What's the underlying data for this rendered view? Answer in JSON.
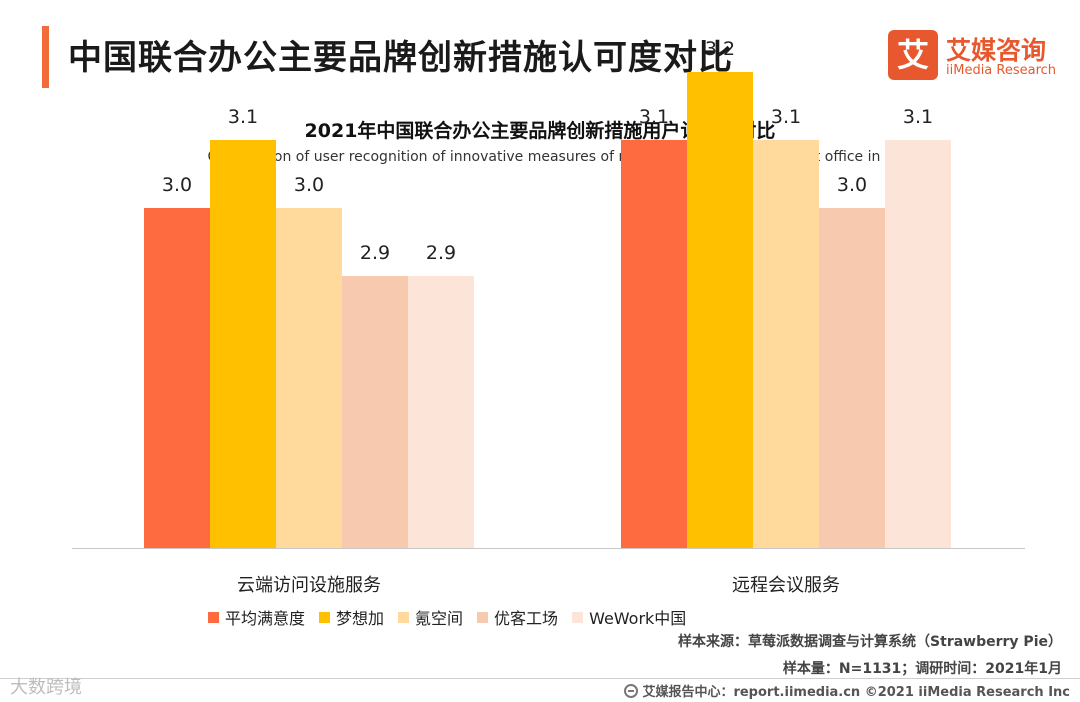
{
  "header": {
    "title": "中国联合办公主要品牌创新措施认可度对比",
    "accent_color": "#F26B3A"
  },
  "logo": {
    "glyph": "艾",
    "cn": "艾媒咨询",
    "en": "iiMedia Research",
    "color": "#E8582E"
  },
  "chart_data": {
    "type": "bar",
    "title": "2021年中国联合办公主要品牌创新措施用户认可度对比",
    "subtitle": "Comparison of user recognition of innovative measures of major brands of China's joint office in 2021",
    "categories": [
      "云端访问设施服务",
      "远程会议服务"
    ],
    "ylim": [
      2.5,
      3.3
    ],
    "series": [
      {
        "name": "平均满意度",
        "color": "#FF6B40",
        "values": [
          3.0,
          3.1
        ]
      },
      {
        "name": "梦想加",
        "color": "#FFC000",
        "values": [
          3.1,
          3.2
        ]
      },
      {
        "name": "氪空间",
        "color": "#FFDA9C",
        "values": [
          3.0,
          3.1
        ]
      },
      {
        "name": "优客工场",
        "color": "#F7C9AF",
        "values": [
          2.9,
          3.0
        ]
      },
      {
        "name": "WeWork中国",
        "color": "#FCE4D8",
        "values": [
          2.9,
          3.1
        ]
      }
    ],
    "data_labels": [
      [
        "3.0",
        "3.1",
        "3.0",
        "2.9",
        "2.9"
      ],
      [
        "3.1",
        "3.2",
        "3.1",
        "3.0",
        "3.1"
      ]
    ],
    "legend_position": "bottom"
  },
  "source": {
    "source_text": "样本来源：草莓派数据调查与计算系统（Strawberry Pie）",
    "sample_text": "样本量：N=1131；调研时间：2021年1月"
  },
  "footer": {
    "text": "艾媒报告中心：report.iimedia.cn  ©2021  iiMedia Research  Inc",
    "watermark": "大数跨境"
  }
}
